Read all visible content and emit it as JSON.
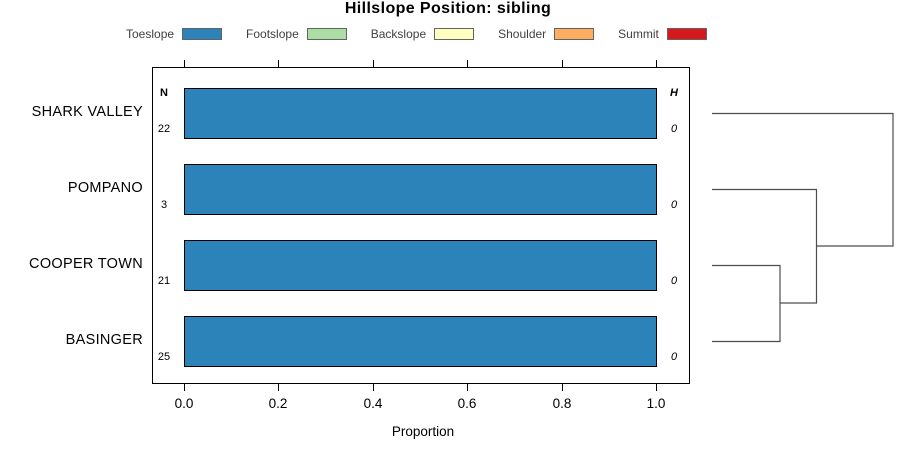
{
  "title": "Hillslope Position: sibling",
  "legend": {
    "items": [
      {
        "label": "Toeslope",
        "color": "#2B83BA"
      },
      {
        "label": "Footslope",
        "color": "#ABDDA4"
      },
      {
        "label": "Backslope",
        "color": "#FFFFBF"
      },
      {
        "label": "Shoulder",
        "color": "#FDAE61"
      },
      {
        "label": "Summit",
        "color": "#D7191C"
      }
    ]
  },
  "columns": {
    "n_header": "N",
    "h_header": "H"
  },
  "rows": [
    {
      "label": "SHARK VALLEY",
      "n": "22",
      "h": "0"
    },
    {
      "label": "POMPANO",
      "n": "3",
      "h": "0"
    },
    {
      "label": "COOPER TOWN",
      "n": "21",
      "h": "0"
    },
    {
      "label": "BASINGER",
      "n": "25",
      "h": "0"
    }
  ],
  "axis": {
    "ticks": [
      "0.0",
      "0.2",
      "0.4",
      "0.6",
      "0.8",
      "1.0"
    ],
    "label": "Proportion"
  },
  "chart_data": {
    "type": "bar",
    "orientation": "horizontal",
    "title": "Hillslope Position: sibling",
    "categories": [
      "SHARK VALLEY",
      "POMPANO",
      "COOPER TOWN",
      "BASINGER"
    ],
    "series": [
      {
        "name": "Toeslope",
        "color": "#2B83BA",
        "values": [
          1.0,
          1.0,
          1.0,
          1.0
        ]
      },
      {
        "name": "Footslope",
        "color": "#ABDDA4",
        "values": [
          0,
          0,
          0,
          0
        ]
      },
      {
        "name": "Backslope",
        "color": "#FFFFBF",
        "values": [
          0,
          0,
          0,
          0
        ]
      },
      {
        "name": "Shoulder",
        "color": "#FDAE61",
        "values": [
          0,
          0,
          0,
          0
        ]
      },
      {
        "name": "Summit",
        "color": "#D7191C",
        "values": [
          0,
          0,
          0,
          0
        ]
      }
    ],
    "n_obs": [
      22,
      3,
      21,
      25
    ],
    "shannon_h": [
      0,
      0,
      0,
      0
    ],
    "xlabel": "Proportion",
    "xlim": [
      0,
      1
    ],
    "x_ticks": [
      0.0,
      0.2,
      0.4,
      0.6,
      0.8,
      1.0
    ],
    "grid": false,
    "legend_position": "top",
    "dendrogram": {
      "side": "right",
      "merge_order": [
        [
          "COOPER TOWN",
          "BASINGER"
        ],
        [
          [
            "COOPER TOWN",
            "BASINGER"
          ],
          "POMPANO"
        ],
        [
          [
            [
              "COOPER TOWN",
              "BASINGER"
            ],
            "POMPANO"
          ],
          "SHARK VALLEY"
        ]
      ]
    }
  }
}
